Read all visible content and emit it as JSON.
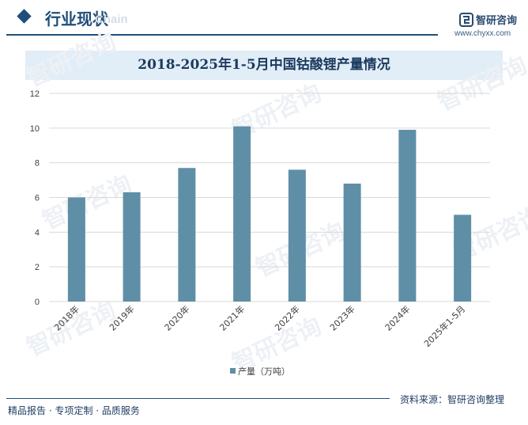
{
  "header": {
    "section_title": "行业现状",
    "ghost_text": "Chain",
    "brand_name": "智研咨询",
    "brand_url": "www.chyxx.com"
  },
  "footer": {
    "slogan": "精品报告 · 专项定制 · 品质服务",
    "source": "资料来源：智研咨询整理"
  },
  "watermark": "智研咨询",
  "colors": {
    "bar": "#5f8fa6",
    "accent": "#1f4e79",
    "title_band": "#e1edf7",
    "grid": "#d9d9d9"
  },
  "chart_data": {
    "type": "bar",
    "title": "2018-2025年1-5月中国钴酸锂产量情况",
    "categories": [
      "2018年",
      "2019年",
      "2020年",
      "2021年",
      "2022年",
      "2023年",
      "2024年",
      "2025年1-5月"
    ],
    "series": [
      {
        "name": "产量（万吨）",
        "values": [
          6.0,
          6.3,
          7.7,
          10.1,
          7.6,
          6.8,
          9.9,
          5.0
        ]
      }
    ],
    "ylim": [
      0,
      12
    ],
    "yticks": [
      "0",
      "2",
      "4",
      "6",
      "8",
      "10",
      "12"
    ],
    "grid": true,
    "legend_position": "bottom"
  }
}
